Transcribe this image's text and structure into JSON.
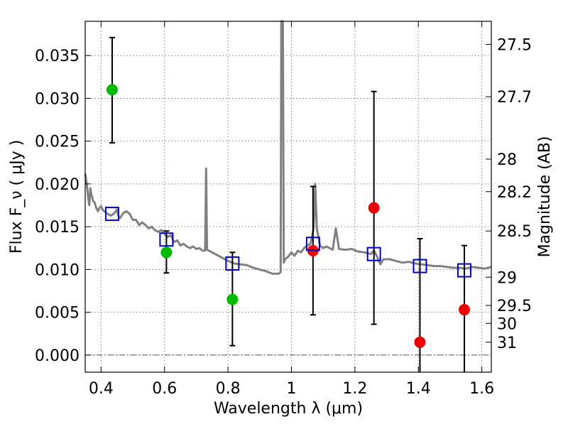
{
  "chart_data": {
    "type": "scatter",
    "xlabel": "Wavelength  λ (μm)",
    "ylabel": "Flux  F_ν  ( μJy )",
    "y2label": "Magnitude (AB)",
    "xlim": [
      0.35,
      1.63
    ],
    "ylim": [
      -0.002,
      0.039
    ],
    "x_ticks": [
      "0.4",
      "0.6",
      "0.8",
      "1",
      "1.2",
      "1.4",
      "1.6"
    ],
    "y_ticks": [
      "0.000",
      "0.005",
      "0.010",
      "0.015",
      "0.020",
      "0.025",
      "0.030",
      "0.035"
    ],
    "y2_ticks": [
      {
        "label": "27.5",
        "flux": 0.0363
      },
      {
        "label": "27.7",
        "flux": 0.0302
      },
      {
        "label": "28",
        "flux": 0.0229
      },
      {
        "label": "28.2",
        "flux": 0.0191
      },
      {
        "label": "28.5",
        "flux": 0.0145
      },
      {
        "label": "29",
        "flux": 0.0091
      },
      {
        "label": "29.5",
        "flux": 0.0058
      },
      {
        "label": "30",
        "flux": 0.0037
      },
      {
        "label": "31",
        "flux": 0.0015
      }
    ],
    "grid": true,
    "zero_line": true,
    "series": [
      {
        "marker": "circle",
        "color": "#00bb00",
        "points": [
          {
            "x": 0.435,
            "y": 0.031,
            "err_low": 0.0062,
            "err_high": 0.0061
          },
          {
            "x": 0.606,
            "y": 0.012,
            "err_low": 0.0024,
            "err_high": 0.0025
          },
          {
            "x": 0.814,
            "y": 0.0065,
            "err_low": 0.0054,
            "err_high": 0.0055
          }
        ]
      },
      {
        "marker": "circle",
        "color": "#ee0000",
        "points": [
          {
            "x": 1.068,
            "y": 0.0122,
            "err_low": 0.0075,
            "err_high": 0.0075
          },
          {
            "x": 1.26,
            "y": 0.0172,
            "err_low": 0.0136,
            "err_high": 0.0136
          },
          {
            "x": 1.405,
            "y": 0.0015,
            "err_low": 0.005,
            "err_high": 0.0121
          },
          {
            "x": 1.545,
            "y": 0.0053,
            "err_low": 0.009,
            "err_high": 0.0075
          }
        ]
      },
      {
        "marker": "open-square",
        "color": "#0000cc",
        "points": [
          {
            "x": 0.435,
            "y": 0.0165
          },
          {
            "x": 0.606,
            "y": 0.0135
          },
          {
            "x": 0.814,
            "y": 0.0107
          },
          {
            "x": 1.068,
            "y": 0.013
          },
          {
            "x": 1.26,
            "y": 0.0118
          },
          {
            "x": 1.405,
            "y": 0.0104
          },
          {
            "x": 1.545,
            "y": 0.0099
          }
        ]
      },
      {
        "type": "line",
        "color": "#808080",
        "points": [
          [
            0.35,
            0.0212
          ],
          [
            0.355,
            0.02
          ],
          [
            0.36,
            0.0182
          ],
          [
            0.363,
            0.0175
          ],
          [
            0.366,
            0.0195
          ],
          [
            0.37,
            0.0187
          ],
          [
            0.375,
            0.018
          ],
          [
            0.38,
            0.0178
          ],
          [
            0.385,
            0.0172
          ],
          [
            0.39,
            0.0168
          ],
          [
            0.395,
            0.0172
          ],
          [
            0.4,
            0.0174
          ],
          [
            0.405,
            0.017
          ],
          [
            0.41,
            0.0168
          ],
          [
            0.42,
            0.0165
          ],
          [
            0.43,
            0.0163
          ],
          [
            0.44,
            0.0165
          ],
          [
            0.45,
            0.017
          ],
          [
            0.455,
            0.0162
          ],
          [
            0.46,
            0.016
          ],
          [
            0.47,
            0.0166
          ],
          [
            0.48,
            0.0168
          ],
          [
            0.49,
            0.0165
          ],
          [
            0.5,
            0.0158
          ],
          [
            0.51,
            0.0158
          ],
          [
            0.52,
            0.0152
          ],
          [
            0.53,
            0.0155
          ],
          [
            0.54,
            0.0152
          ],
          [
            0.55,
            0.0148
          ],
          [
            0.56,
            0.015
          ],
          [
            0.57,
            0.0146
          ],
          [
            0.58,
            0.0144
          ],
          [
            0.59,
            0.0146
          ],
          [
            0.6,
            0.0142
          ],
          [
            0.61,
            0.0138
          ],
          [
            0.62,
            0.014
          ],
          [
            0.63,
            0.0132
          ],
          [
            0.64,
            0.0134
          ],
          [
            0.65,
            0.0128
          ],
          [
            0.66,
            0.013
          ],
          [
            0.67,
            0.0127
          ],
          [
            0.68,
            0.0125
          ],
          [
            0.69,
            0.0127
          ],
          [
            0.7,
            0.0124
          ],
          [
            0.71,
            0.0125
          ],
          [
            0.72,
            0.0122
          ],
          [
            0.728,
            0.0122
          ],
          [
            0.731,
            0.0218
          ],
          [
            0.734,
            0.0123
          ],
          [
            0.74,
            0.0122
          ],
          [
            0.75,
            0.012
          ],
          [
            0.76,
            0.0118
          ],
          [
            0.78,
            0.0114
          ],
          [
            0.8,
            0.011
          ],
          [
            0.82,
            0.0107
          ],
          [
            0.84,
            0.0106
          ],
          [
            0.86,
            0.0105
          ],
          [
            0.88,
            0.0102
          ],
          [
            0.9,
            0.01
          ],
          [
            0.92,
            0.0098
          ],
          [
            0.94,
            0.0095
          ],
          [
            0.96,
            0.0095
          ],
          [
            0.966,
            0.0097
          ],
          [
            0.968,
            0.039
          ],
          [
            0.973,
            0.039
          ],
          [
            0.976,
            0.0108
          ],
          [
            0.98,
            0.0112
          ],
          [
            0.99,
            0.0115
          ],
          [
            1.0,
            0.012
          ],
          [
            1.01,
            0.0116
          ],
          [
            1.02,
            0.0122
          ],
          [
            1.03,
            0.012
          ],
          [
            1.04,
            0.0125
          ],
          [
            1.05,
            0.0128
          ],
          [
            1.06,
            0.013
          ],
          [
            1.07,
            0.0148
          ],
          [
            1.075,
            0.02
          ],
          [
            1.08,
            0.0148
          ],
          [
            1.09,
            0.0128
          ],
          [
            1.1,
            0.0125
          ],
          [
            1.11,
            0.0127
          ],
          [
            1.12,
            0.0125
          ],
          [
            1.13,
            0.0123
          ],
          [
            1.14,
            0.0148
          ],
          [
            1.15,
            0.0124
          ],
          [
            1.17,
            0.0123
          ],
          [
            1.19,
            0.0124
          ],
          [
            1.21,
            0.0121
          ],
          [
            1.23,
            0.012
          ],
          [
            1.25,
            0.0118
          ],
          [
            1.26,
            0.0122
          ],
          [
            1.27,
            0.0115
          ],
          [
            1.28,
            0.0106
          ],
          [
            1.29,
            0.0112
          ],
          [
            1.31,
            0.0112
          ],
          [
            1.33,
            0.011
          ],
          [
            1.35,
            0.0108
          ],
          [
            1.37,
            0.0109
          ],
          [
            1.39,
            0.0107
          ],
          [
            1.41,
            0.0106
          ],
          [
            1.43,
            0.0105
          ],
          [
            1.45,
            0.0104
          ],
          [
            1.47,
            0.0104
          ],
          [
            1.49,
            0.0103
          ],
          [
            1.51,
            0.0102
          ],
          [
            1.53,
            0.0102
          ],
          [
            1.55,
            0.0101
          ],
          [
            1.57,
            0.0103
          ],
          [
            1.59,
            0.0102
          ],
          [
            1.61,
            0.0101
          ],
          [
            1.63,
            0.0103
          ]
        ]
      }
    ]
  },
  "colors": {
    "grid": "#808080",
    "errorbar": "#000000",
    "axes": "#000000"
  }
}
